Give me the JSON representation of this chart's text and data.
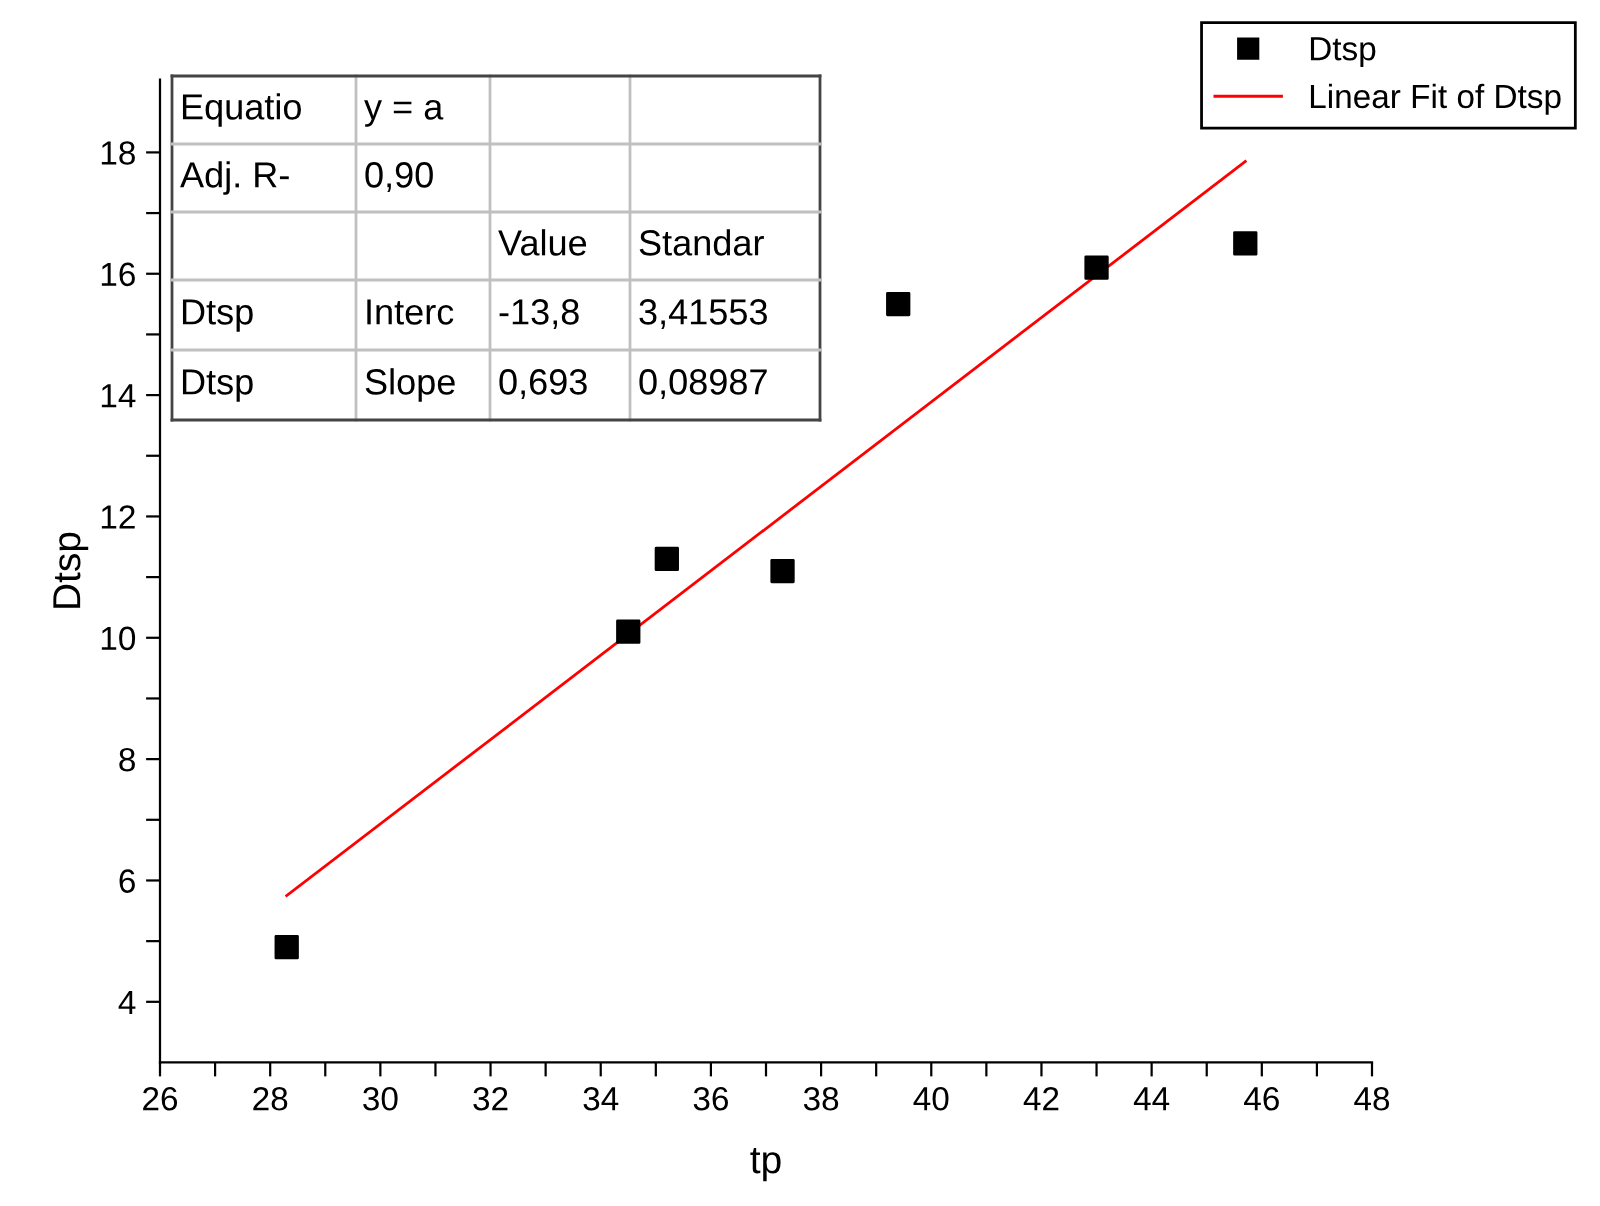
{
  "chart_data": {
    "type": "scatter",
    "xlabel": "tp",
    "ylabel": "Dtsp",
    "series": [
      {
        "name": "Dtsp",
        "color": "#000000",
        "marker": "square",
        "x": [
          28.3,
          34.5,
          35.2,
          37.3,
          39.4,
          43.0,
          45.7
        ],
        "values": [
          4.9,
          10.1,
          11.3,
          11.1,
          15.5,
          16.1,
          16.5
        ]
      },
      {
        "name": "Linear Fit of Dtsp",
        "type": "line",
        "color": "#ff0000",
        "marker": "none",
        "line_style": "solid",
        "x": [
          28.3,
          45.7
        ],
        "values": [
          5.75,
          17.85
        ]
      }
    ],
    "xlim": [
      26,
      48
    ],
    "ylim": [
      3,
      19.2
    ],
    "xticks": [
      26,
      {
        "value": 27,
        "label": null
      },
      28,
      {
        "value": 29,
        "label": null
      },
      30,
      {
        "value": 31,
        "label": null
      },
      32,
      {
        "value": 33,
        "label": null
      },
      34,
      {
        "value": 35,
        "label": null
      },
      36,
      {
        "value": 37,
        "label": null
      },
      38,
      {
        "value": 39,
        "label": null
      },
      40,
      {
        "value": 41,
        "label": null
      },
      42,
      {
        "value": 43,
        "label": null
      },
      44,
      {
        "value": 45,
        "label": null
      },
      46,
      {
        "value": 47,
        "label": null
      },
      48
    ],
    "yticks": [
      4,
      {
        "value": 5,
        "label": null
      },
      6,
      {
        "value": 7,
        "label": null
      },
      8,
      {
        "value": 9,
        "label": null
      },
      10,
      {
        "value": 11,
        "label": null
      },
      12,
      {
        "value": 13,
        "label": null
      },
      14,
      {
        "value": 15,
        "label": null
      },
      16,
      {
        "value": 17,
        "label": null
      },
      18
    ],
    "annotations": [
      "Equatio",
      "y = a",
      "Adj. R-",
      "0,90",
      "Value",
      "Standar",
      "Dtsp",
      "Interc",
      "-13,8",
      "3,41553",
      "Dtsp",
      "Slope",
      "0,693",
      "0,08987"
    ],
    "grid": false,
    "legend": "top right"
  }
}
